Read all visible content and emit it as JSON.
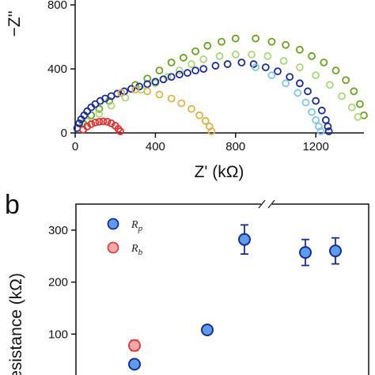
{
  "panel_a": {
    "chart_data": {
      "type": "scatter",
      "ylabel": "−Z''",
      "xlabel": "Z' (kΩ)",
      "xlim": [
        0,
        1440
      ],
      "ylim": [
        0,
        900
      ],
      "x_ticks": [
        "0",
        "400",
        "800",
        "1200"
      ],
      "y_ticks": [
        "0",
        "400",
        "800"
      ],
      "series": [
        {
          "color": "#6aa21e",
          "marker": "open-circle",
          "x": [
            40,
            80,
            120,
            170,
            230,
            300,
            360,
            420,
            480,
            540,
            600,
            660,
            730,
            800,
            900,
            980,
            1050,
            1120,
            1180,
            1240,
            1300,
            1350,
            1390,
            1420,
            1440
          ],
          "y": [
            60,
            110,
            150,
            200,
            250,
            300,
            340,
            390,
            440,
            470,
            510,
            545,
            570,
            590,
            590,
            570,
            550,
            520,
            480,
            440,
            390,
            330,
            260,
            180,
            110
          ]
        },
        {
          "color": "#a8d87a",
          "marker": "open-circle",
          "x": [
            60,
            120,
            180,
            250,
            330,
            400,
            460,
            520,
            580,
            640,
            720,
            800,
            880,
            960,
            1040,
            1120,
            1200,
            1270,
            1330,
            1380,
            1410
          ],
          "y": [
            70,
            120,
            170,
            220,
            270,
            310,
            350,
            390,
            430,
            460,
            480,
            490,
            490,
            480,
            450,
            410,
            360,
            300,
            230,
            160,
            100
          ]
        },
        {
          "color": "#1a2a9e",
          "marker": "open-circle",
          "x": [
            10,
            20,
            30,
            45,
            60,
            80,
            100,
            125,
            150,
            180,
            210,
            245,
            280,
            320,
            360,
            400,
            440,
            480,
            520,
            560,
            600,
            640,
            700,
            760,
            830,
            890,
            950,
            1010,
            1070,
            1120,
            1160,
            1200,
            1230,
            1250,
            1260,
            1265
          ],
          "y": [
            30,
            60,
            85,
            110,
            135,
            160,
            180,
            200,
            215,
            230,
            245,
            260,
            275,
            290,
            305,
            320,
            335,
            350,
            365,
            375,
            390,
            400,
            420,
            430,
            440,
            430,
            410,
            385,
            350,
            310,
            260,
            200,
            140,
            80,
            40,
            10
          ]
        },
        {
          "color": "#7fc6e8",
          "marker": "open-circle",
          "x": [
            900,
            980,
            1050,
            1110,
            1150,
            1180,
            1200,
            1215,
            1225
          ],
          "y": [
            410,
            360,
            310,
            250,
            190,
            130,
            80,
            40,
            10
          ]
        },
        {
          "color": "#e0b24a",
          "marker": "open-circle",
          "x": [
            230,
            300,
            360,
            420,
            480,
            530,
            580,
            620,
            650,
            670,
            680
          ],
          "y": [
            250,
            270,
            260,
            240,
            215,
            185,
            150,
            110,
            75,
            40,
            10
          ]
        },
        {
          "color": "#e53030",
          "marker": "open-circle",
          "x": [
            40,
            60,
            80,
            100,
            120,
            140,
            160,
            180,
            200,
            215,
            225
          ],
          "y": [
            20,
            40,
            55,
            65,
            70,
            72,
            70,
            60,
            45,
            25,
            10
          ]
        }
      ]
    }
  },
  "panel_b": {
    "label": "b",
    "chart_data": {
      "type": "scatter",
      "ylabel": "Resistance (kΩ)",
      "ylim": [
        0,
        350
      ],
      "y_ticks": [
        "100",
        "200",
        "300"
      ],
      "legend_position": "top-left",
      "series": [
        {
          "name": "R",
          "subscript": "p",
          "color": "#1a2a9e",
          "fill": "#5b9ee8",
          "x": [
            1,
            2,
            3,
            4,
            5
          ],
          "y": [
            42,
            108,
            282,
            257,
            260
          ],
          "err": [
            0,
            8,
            28,
            25,
            25
          ]
        },
        {
          "name": "R",
          "subscript": "b",
          "color": "#d94040",
          "fill": "#f4a8a8",
          "x": [
            1
          ],
          "y": [
            78
          ],
          "err": [
            10
          ]
        }
      ]
    }
  }
}
